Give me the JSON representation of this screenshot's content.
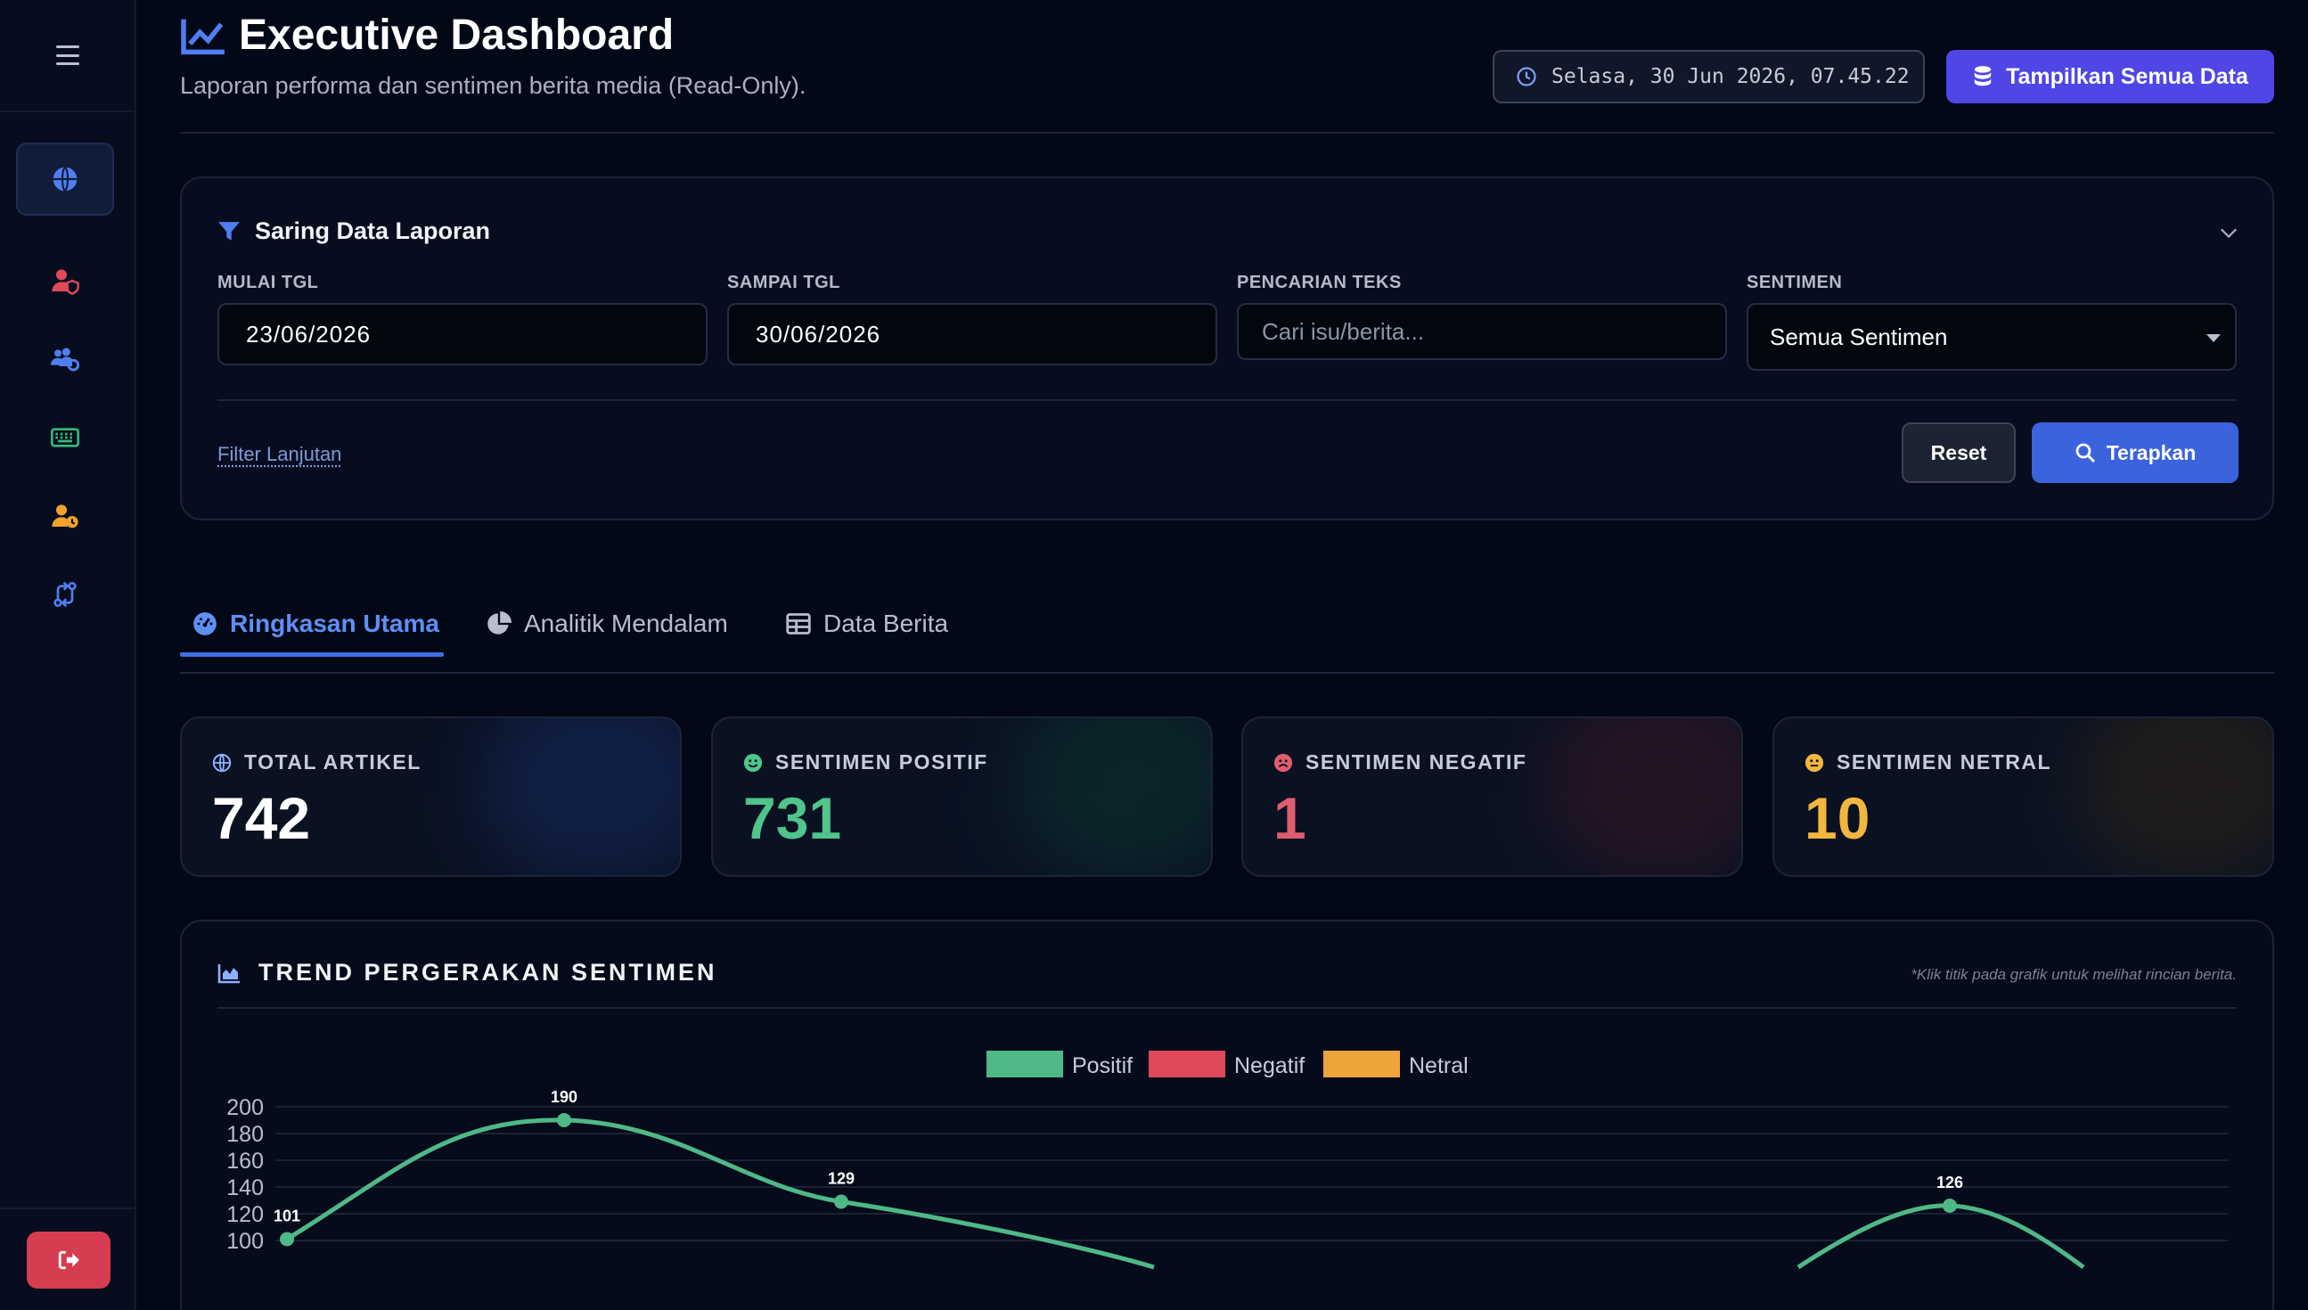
{
  "header": {
    "title": "Executive Dashboard",
    "subtitle": "Laporan performa dan sentimen berita media (Read-Only).",
    "datetime": "Selasa, 30 Jun 2026, 07.45.22",
    "show_all_label": "Tampilkan Semua Data"
  },
  "sidebar": {
    "items": [
      {
        "name": "globe",
        "color": "#4f7ef2",
        "active": true
      },
      {
        "name": "user-shield",
        "color": "#e0485c"
      },
      {
        "name": "users-cog",
        "color": "#4f7ef2"
      },
      {
        "name": "keyboard",
        "color": "#35b878"
      },
      {
        "name": "user-clock",
        "color": "#f0a22c"
      },
      {
        "name": "sync-route",
        "color": "#4f7ef2"
      }
    ]
  },
  "filter": {
    "title": "Saring Data Laporan",
    "start_label": "MULAI TGL",
    "start_value": "23/06/2026",
    "end_label": "SAMPAI TGL",
    "end_value": "30/06/2026",
    "search_label": "PENCARIAN TEKS",
    "search_placeholder": "Cari isu/berita...",
    "sentiment_label": "SENTIMEN",
    "sentiment_value": "Semua Sentimen",
    "advanced_label": "Filter Lanjutan",
    "reset_label": "Reset",
    "apply_label": "Terapkan"
  },
  "tabs": [
    {
      "label": "Ringkasan Utama",
      "active": true
    },
    {
      "label": "Analitik Mendalam"
    },
    {
      "label": "Data Berita"
    }
  ],
  "stats": [
    {
      "label": "TOTAL ARTIKEL",
      "value": "742",
      "color": "#ffffff",
      "glow": "#1e3a8a"
    },
    {
      "label": "SENTIMEN POSITIF",
      "value": "731",
      "color": "#4fc48b",
      "glow": "#0f4a3a"
    },
    {
      "label": "SENTIMEN NEGATIF",
      "value": "1",
      "color": "#e05d6f",
      "glow": "#5a1a2a"
    },
    {
      "label": "SENTIMEN NETRAL",
      "value": "10",
      "color": "#f3b63f",
      "glow": "#4a3212"
    }
  ],
  "chart": {
    "title": "TREND PERGERAKAN SENTIMEN",
    "hint": "*Klik titik pada grafik untuk melihat rincian berita."
  },
  "chart_data": {
    "type": "line",
    "x_count": 8,
    "y_ticks": [
      200,
      180,
      160,
      140,
      120,
      100
    ],
    "ylim": [
      0,
      200
    ],
    "legend_position": "top-center",
    "series": [
      {
        "name": "Positif",
        "color": "#4fb887",
        "points": [
          [
            0,
            101
          ],
          [
            1,
            190
          ],
          [
            2,
            129
          ],
          [
            6,
            126
          ]
        ]
      },
      {
        "name": "Negatif",
        "color": "#e0485c",
        "points": []
      },
      {
        "name": "Netral",
        "color": "#eda43a",
        "points": []
      }
    ]
  }
}
